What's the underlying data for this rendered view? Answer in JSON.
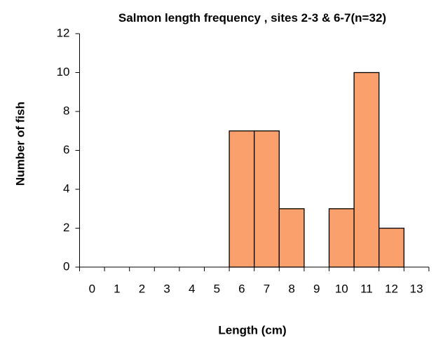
{
  "chart_data": {
    "type": "bar",
    "title": "Salmon length frequency , sites 2-3 & 6-7(n=32)",
    "x_label": "Length (cm)",
    "y_label": "Number of fish",
    "categories": [
      "0",
      "1",
      "2",
      "3",
      "4",
      "5",
      "6",
      "7",
      "8",
      "9",
      "10",
      "11",
      "12",
      "13"
    ],
    "values": [
      0,
      0,
      0,
      0,
      0,
      0,
      7,
      7,
      3,
      0,
      3,
      10,
      2,
      0
    ],
    "color": "#f9a06c",
    "ylim": [
      0,
      12
    ],
    "yticks": [
      0,
      2,
      4,
      6,
      8,
      10,
      12
    ],
    "grid": false
  }
}
